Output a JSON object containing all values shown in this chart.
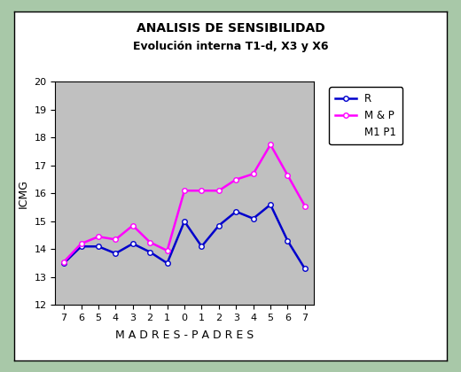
{
  "title_line1": "ANALISIS DE SENSIBILIDAD",
  "title_line2": "Evolución interna T1-d, X3 y X6",
  "xlabel": "M A D R E S - P A D R E S",
  "ylabel": "ICMG",
  "x_labels": [
    "7",
    "6",
    "5",
    "4",
    "3",
    "2",
    "1",
    "0",
    "1",
    "2",
    "3",
    "4",
    "5",
    "6",
    "7"
  ],
  "x_positions": [
    0,
    1,
    2,
    3,
    4,
    5,
    6,
    7,
    8,
    9,
    10,
    11,
    12,
    13,
    14
  ],
  "R_values": [
    13.5,
    14.1,
    14.1,
    13.85,
    14.2,
    13.9,
    13.5,
    15.0,
    14.1,
    14.85,
    15.35,
    15.1,
    15.6,
    14.3,
    13.3
  ],
  "MP_values": [
    13.55,
    14.2,
    14.45,
    14.35,
    14.85,
    14.25,
    13.95,
    16.1,
    16.1,
    16.1,
    16.5,
    16.7,
    17.75,
    16.65,
    15.55
  ],
  "R_color": "#0000CC",
  "MP_color": "#FF00FF",
  "legend_labels": [
    "R",
    "M & P",
    "M1 P1"
  ],
  "ylim": [
    12,
    20
  ],
  "yticks": [
    12,
    13,
    14,
    15,
    16,
    17,
    18,
    19,
    20
  ],
  "plot_bg": "#C0C0C0",
  "outer_border": "#A8C8A8",
  "inner_bg": "#FFFFFF",
  "marker": "o",
  "markersize": 4,
  "linewidth": 1.8
}
